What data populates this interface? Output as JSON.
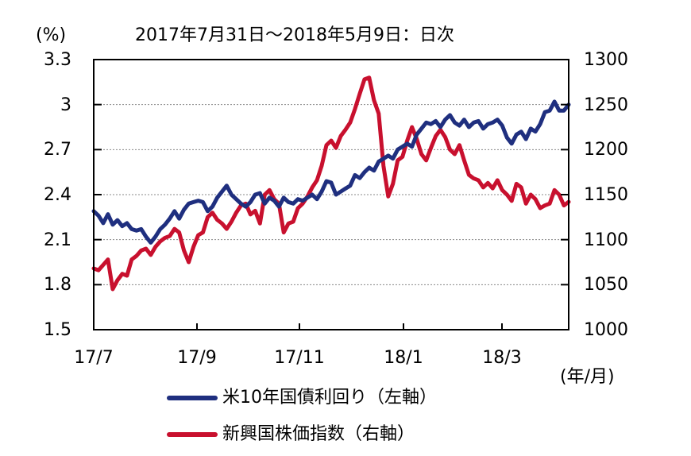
{
  "chart_data": {
    "type": "line",
    "title": "2017年7月31日～2018年5月9日：日次",
    "xlabel": "(年/月)",
    "ylabel_left": "(%)",
    "ylabel_right": "",
    "x_tick_labels": [
      "17/7",
      "17/9",
      "17/11",
      "18/1",
      "18/3"
    ],
    "y_left": {
      "ylim": [
        1.5,
        3.3
      ],
      "ticks": [
        "3.3",
        "3",
        "2.7",
        "2.4",
        "2.1",
        "1.8",
        "1.5"
      ]
    },
    "y_right": {
      "ylim": [
        1000,
        1300
      ],
      "ticks": [
        "1300",
        "1250",
        "1200",
        "1150",
        "1100",
        "1050",
        "1000"
      ]
    },
    "grid": "horizontal dotted",
    "legend_position": "bottom",
    "series": [
      {
        "name": "米10年国債利回り（左軸）",
        "axis": "left",
        "color": "#1f2f7f",
        "x_frac": [
          0.0,
          0.01,
          0.02,
          0.03,
          0.04,
          0.05,
          0.06,
          0.07,
          0.08,
          0.09,
          0.1,
          0.11,
          0.12,
          0.13,
          0.14,
          0.15,
          0.16,
          0.17,
          0.18,
          0.19,
          0.2,
          0.21,
          0.22,
          0.23,
          0.24,
          0.25,
          0.26,
          0.27,
          0.28,
          0.29,
          0.3,
          0.31,
          0.32,
          0.33,
          0.34,
          0.35,
          0.36,
          0.37,
          0.38,
          0.39,
          0.4,
          0.41,
          0.42,
          0.43,
          0.44,
          0.45,
          0.46,
          0.47,
          0.48,
          0.49,
          0.5,
          0.51,
          0.52,
          0.53,
          0.54,
          0.55,
          0.56,
          0.57,
          0.58,
          0.59,
          0.6,
          0.61,
          0.62,
          0.63,
          0.64,
          0.65,
          0.66,
          0.67,
          0.68,
          0.69,
          0.7,
          0.71,
          0.72,
          0.73,
          0.74,
          0.75,
          0.76,
          0.77,
          0.78,
          0.79,
          0.8,
          0.81,
          0.82,
          0.83,
          0.84,
          0.85,
          0.86,
          0.87,
          0.88,
          0.89,
          0.9,
          0.91,
          0.92,
          0.93,
          0.94,
          0.95,
          0.96,
          0.97,
          0.98,
          0.99,
          1.0
        ],
        "values": [
          2.29,
          2.26,
          2.21,
          2.27,
          2.2,
          2.23,
          2.19,
          2.21,
          2.17,
          2.16,
          2.17,
          2.12,
          2.08,
          2.12,
          2.17,
          2.2,
          2.24,
          2.29,
          2.24,
          2.3,
          2.34,
          2.35,
          2.36,
          2.35,
          2.29,
          2.32,
          2.38,
          2.42,
          2.46,
          2.4,
          2.37,
          2.34,
          2.32,
          2.35,
          2.4,
          2.41,
          2.34,
          2.38,
          2.36,
          2.32,
          2.38,
          2.35,
          2.34,
          2.37,
          2.36,
          2.38,
          2.4,
          2.37,
          2.42,
          2.49,
          2.48,
          2.4,
          2.42,
          2.44,
          2.46,
          2.53,
          2.51,
          2.55,
          2.58,
          2.56,
          2.62,
          2.64,
          2.66,
          2.64,
          2.7,
          2.72,
          2.74,
          2.72,
          2.8,
          2.84,
          2.88,
          2.87,
          2.89,
          2.85,
          2.9,
          2.93,
          2.88,
          2.86,
          2.9,
          2.85,
          2.88,
          2.89,
          2.84,
          2.87,
          2.88,
          2.9,
          2.86,
          2.78,
          2.74,
          2.8,
          2.82,
          2.77,
          2.84,
          2.82,
          2.87,
          2.95,
          2.96,
          3.02,
          2.96,
          2.96,
          3.0
        ]
      },
      {
        "name": "新興国株価指数（右軸）",
        "axis": "right",
        "color": "#c8102e",
        "x_frac": [
          0.0,
          0.01,
          0.02,
          0.03,
          0.04,
          0.05,
          0.06,
          0.07,
          0.08,
          0.09,
          0.1,
          0.11,
          0.12,
          0.13,
          0.14,
          0.15,
          0.16,
          0.17,
          0.18,
          0.19,
          0.2,
          0.21,
          0.22,
          0.23,
          0.24,
          0.25,
          0.26,
          0.27,
          0.28,
          0.29,
          0.3,
          0.31,
          0.32,
          0.33,
          0.34,
          0.35,
          0.36,
          0.37,
          0.38,
          0.39,
          0.4,
          0.41,
          0.42,
          0.43,
          0.44,
          0.45,
          0.46,
          0.47,
          0.48,
          0.49,
          0.5,
          0.51,
          0.52,
          0.53,
          0.54,
          0.55,
          0.56,
          0.57,
          0.58,
          0.59,
          0.6,
          0.61,
          0.62,
          0.63,
          0.64,
          0.65,
          0.66,
          0.67,
          0.68,
          0.69,
          0.7,
          0.71,
          0.72,
          0.73,
          0.74,
          0.75,
          0.76,
          0.77,
          0.78,
          0.79,
          0.8,
          0.81,
          0.82,
          0.83,
          0.84,
          0.85,
          0.86,
          0.87,
          0.88,
          0.89,
          0.9,
          0.91,
          0.92,
          0.93,
          0.94,
          0.95,
          0.96,
          0.97,
          0.98,
          0.99,
          1.0
        ],
        "values": [
          1068,
          1066,
          1072,
          1078,
          1045,
          1055,
          1062,
          1060,
          1078,
          1082,
          1088,
          1090,
          1083,
          1092,
          1098,
          1102,
          1104,
          1112,
          1108,
          1088,
          1075,
          1092,
          1105,
          1108,
          1125,
          1130,
          1122,
          1118,
          1112,
          1120,
          1130,
          1138,
          1140,
          1128,
          1132,
          1118,
          1150,
          1155,
          1145,
          1140,
          1108,
          1118,
          1120,
          1135,
          1140,
          1148,
          1158,
          1166,
          1182,
          1205,
          1210,
          1202,
          1215,
          1222,
          1230,
          1245,
          1262,
          1278,
          1280,
          1255,
          1240,
          1182,
          1148,
          1162,
          1188,
          1192,
          1210,
          1225,
          1212,
          1195,
          1188,
          1202,
          1215,
          1222,
          1214,
          1200,
          1195,
          1205,
          1188,
          1172,
          1168,
          1166,
          1158,
          1163,
          1157,
          1166,
          1155,
          1150,
          1143,
          1162,
          1158,
          1140,
          1150,
          1145,
          1135,
          1138,
          1140,
          1155,
          1150,
          1138,
          1142
        ]
      }
    ]
  },
  "header": {
    "unit_left": "(%)",
    "title": "2017年7月31日～2018年5月9日：日次"
  },
  "axes": {
    "left_ticks": [
      "3.3",
      "3",
      "2.7",
      "2.4",
      "2.1",
      "1.8",
      "1.5"
    ],
    "right_ticks": [
      "1300",
      "1250",
      "1200",
      "1150",
      "1100",
      "1050",
      "1000"
    ],
    "x_ticks": [
      "17/7",
      "17/9",
      "17/11",
      "18/1",
      "18/3"
    ],
    "x_unit": "(年/月)"
  },
  "legend": {
    "items": [
      {
        "label": "米10年国債利回り（左軸）",
        "color": "#1f2f7f"
      },
      {
        "label": "新興国株価指数（右軸）",
        "color": "#c8102e"
      }
    ]
  }
}
